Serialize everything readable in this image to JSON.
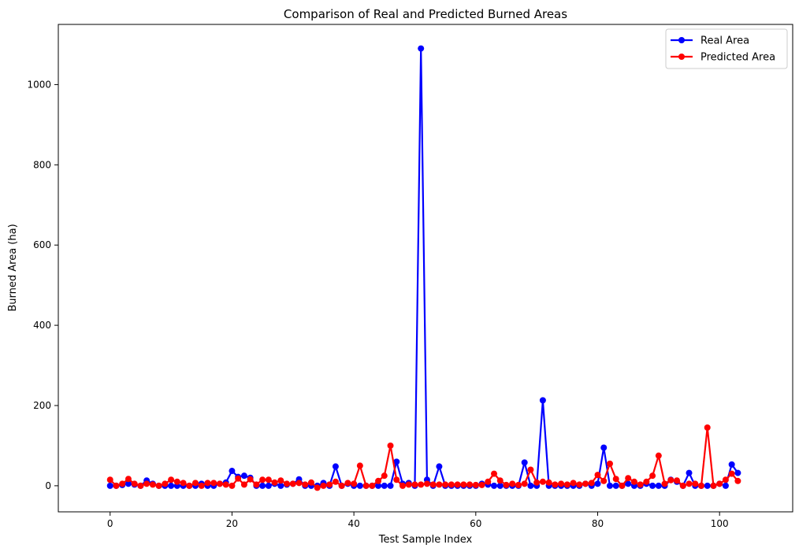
{
  "chart_data": {
    "type": "line",
    "title": "Comparison of Real and Predicted Burned Areas",
    "xlabel": "Test Sample Index",
    "ylabel": "Burned Area (ha)",
    "xlim": [
      -8.5,
      112
    ],
    "ylim": [
      -65,
      1150
    ],
    "xticks": [
      0,
      20,
      40,
      60,
      80,
      100
    ],
    "yticks": [
      0,
      200,
      400,
      600,
      800,
      1000
    ],
    "grid": false,
    "legend_position": "top-right",
    "series": [
      {
        "name": "Real Area",
        "color": "#0000ff",
        "values": [
          0,
          0,
          2,
          5,
          3,
          0,
          13,
          5,
          0,
          0,
          0,
          0,
          0,
          0,
          0,
          5,
          0,
          0,
          5,
          8,
          37,
          22,
          25,
          20,
          0,
          0,
          0,
          5,
          0,
          3,
          5,
          16,
          0,
          0,
          0,
          7,
          0,
          48,
          0,
          5,
          0,
          0,
          0,
          0,
          0,
          0,
          0,
          60,
          5,
          7,
          0,
          1090,
          15,
          0,
          48,
          0,
          0,
          0,
          0,
          0,
          0,
          5,
          3,
          0,
          0,
          0,
          0,
          0,
          58,
          0,
          0,
          213,
          0,
          0,
          0,
          0,
          0,
          0,
          5,
          0,
          5,
          95,
          0,
          0,
          0,
          5,
          0,
          0,
          5,
          0,
          0,
          0,
          15,
          10,
          0,
          32,
          0,
          0,
          0,
          0,
          5,
          0,
          53,
          32
        ]
      },
      {
        "name": "Predicted Area",
        "color": "#ff0000",
        "values": [
          15,
          0,
          5,
          17,
          5,
          0,
          5,
          3,
          0,
          5,
          15,
          10,
          7,
          0,
          7,
          0,
          7,
          7,
          5,
          3,
          0,
          18,
          3,
          16,
          3,
          15,
          15,
          8,
          13,
          5,
          5,
          7,
          3,
          8,
          -5,
          0,
          3,
          10,
          0,
          7,
          5,
          50,
          0,
          0,
          12,
          25,
          100,
          15,
          0,
          3,
          3,
          3,
          5,
          3,
          3,
          3,
          3,
          3,
          3,
          3,
          2,
          2,
          10,
          30,
          13,
          2,
          5,
          2,
          5,
          40,
          8,
          10,
          8,
          3,
          5,
          3,
          7,
          3,
          5,
          7,
          27,
          12,
          55,
          17,
          0,
          19,
          10,
          3,
          10,
          25,
          75,
          5,
          14,
          13,
          0,
          5,
          5,
          0,
          145,
          0,
          5,
          15,
          30,
          12
        ]
      }
    ]
  }
}
